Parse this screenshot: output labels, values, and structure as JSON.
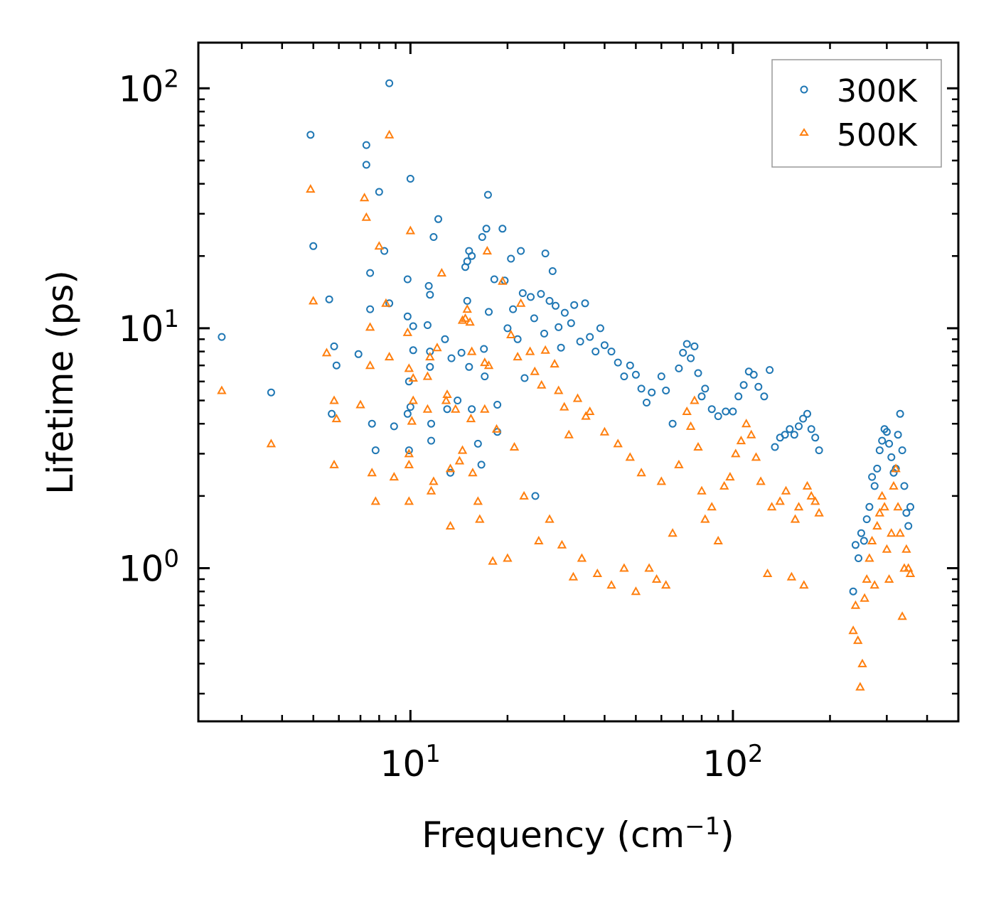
{
  "chart_data": {
    "type": "scatter",
    "title": "",
    "xlabel": "Frequency",
    "xlabel_unit_base": "cm",
    "xlabel_unit_exp": "−1",
    "ylabel": "Lifetime (ps)",
    "xscale": "log",
    "yscale": "log",
    "xlim": [
      2.2,
      500
    ],
    "ylim": [
      0.23,
      155
    ],
    "x_ticks": [
      {
        "value": 10,
        "base": "10",
        "exp": "1"
      },
      {
        "value": 100,
        "base": "10",
        "exp": "2"
      }
    ],
    "y_ticks": [
      {
        "value": 1,
        "base": "10",
        "exp": "0"
      },
      {
        "value": 10,
        "base": "10",
        "exp": "1"
      },
      {
        "value": 100,
        "base": "10",
        "exp": "2"
      }
    ],
    "legend_position": "top-right",
    "series": [
      {
        "name": "300K",
        "marker": "circle",
        "color": "#1f77b4",
        "points": [
          [
            2.6,
            9.2
          ],
          [
            3.7,
            5.4
          ],
          [
            4.9,
            64
          ],
          [
            5.0,
            22
          ],
          [
            5.6,
            13.2
          ],
          [
            5.7,
            4.4
          ],
          [
            5.8,
            8.4
          ],
          [
            5.9,
            7.0
          ],
          [
            6.9,
            7.8
          ],
          [
            7.3,
            58
          ],
          [
            7.3,
            48
          ],
          [
            7.5,
            17
          ],
          [
            7.5,
            12
          ],
          [
            7.6,
            4.0
          ],
          [
            7.8,
            3.1
          ],
          [
            8.0,
            37
          ],
          [
            8.3,
            21
          ],
          [
            8.6,
            12.7
          ],
          [
            8.6,
            105
          ],
          [
            8.9,
            3.9
          ],
          [
            9.8,
            16
          ],
          [
            9.8,
            11.2
          ],
          [
            9.8,
            4.4
          ],
          [
            9.9,
            3.1
          ],
          [
            9.9,
            6.0
          ],
          [
            10.0,
            42
          ],
          [
            10.0,
            4.7
          ],
          [
            10.2,
            10.2
          ],
          [
            10.2,
            8.1
          ],
          [
            11.3,
            10.3
          ],
          [
            11.4,
            15
          ],
          [
            11.5,
            13.8
          ],
          [
            11.5,
            8.0
          ],
          [
            11.5,
            6.9
          ],
          [
            11.6,
            3.4
          ],
          [
            11.6,
            4.0
          ],
          [
            11.8,
            24
          ],
          [
            12.2,
            28.5
          ],
          [
            12.8,
            9.0
          ],
          [
            13.0,
            4.6
          ],
          [
            13.3,
            2.5
          ],
          [
            13.4,
            7.5
          ],
          [
            14.0,
            5.0
          ],
          [
            14.4,
            7.9
          ],
          [
            14.8,
            18
          ],
          [
            15.0,
            19
          ],
          [
            15.2,
            21
          ],
          [
            15.5,
            20
          ],
          [
            15.0,
            13
          ],
          [
            15.2,
            6.9
          ],
          [
            15.5,
            4.6
          ],
          [
            16.2,
            3.3
          ],
          [
            16.6,
            2.7
          ],
          [
            16.7,
            24
          ],
          [
            16.9,
            8.2
          ],
          [
            17.2,
            26
          ],
          [
            17.4,
            36
          ],
          [
            17.5,
            11.7
          ],
          [
            17.0,
            6.3
          ],
          [
            18.2,
            16
          ],
          [
            18.6,
            4.8
          ],
          [
            18.6,
            3.7
          ],
          [
            19.3,
            26
          ],
          [
            19.6,
            15.8
          ],
          [
            20.0,
            10
          ],
          [
            20.5,
            19.5
          ],
          [
            20.8,
            12
          ],
          [
            21.5,
            9.0
          ],
          [
            22.0,
            21
          ],
          [
            22.3,
            14
          ],
          [
            22.6,
            6.2
          ],
          [
            23.6,
            13.5
          ],
          [
            24.2,
            11.0
          ],
          [
            24.4,
            2.0
          ],
          [
            25.4,
            13.9
          ],
          [
            26.0,
            9.5
          ],
          [
            26.2,
            20.5
          ],
          [
            27.0,
            13.0
          ],
          [
            27.6,
            17.3
          ],
          [
            28.2,
            12.4
          ],
          [
            28.8,
            10.1
          ],
          [
            29.3,
            8.3
          ],
          [
            30.1,
            11.6
          ],
          [
            31.5,
            10.5
          ],
          [
            32.2,
            12.5
          ],
          [
            33.6,
            8.8
          ],
          [
            34.8,
            12.7
          ],
          [
            36.0,
            9.2
          ],
          [
            37.5,
            8.0
          ],
          [
            38.8,
            10.0
          ],
          [
            40.0,
            8.5
          ],
          [
            42.0,
            8.0
          ],
          [
            44.0,
            7.2
          ],
          [
            46.0,
            6.3
          ],
          [
            48.0,
            7.0
          ],
          [
            50.0,
            6.4
          ],
          [
            52.0,
            5.6
          ],
          [
            54.0,
            4.9
          ],
          [
            56.0,
            5.4
          ],
          [
            60.0,
            6.3
          ],
          [
            62.0,
            5.5
          ],
          [
            65.0,
            4.0
          ],
          [
            68.0,
            6.8
          ],
          [
            70.0,
            7.9
          ],
          [
            72.0,
            8.6
          ],
          [
            74.0,
            7.5
          ],
          [
            76.0,
            8.4
          ],
          [
            78.0,
            6.5
          ],
          [
            80.0,
            5.2
          ],
          [
            82.0,
            5.6
          ],
          [
            86.0,
            4.6
          ],
          [
            90.0,
            4.3
          ],
          [
            95.0,
            4.5
          ],
          [
            100.0,
            4.5
          ],
          [
            104.0,
            5.2
          ],
          [
            108.0,
            5.8
          ],
          [
            112.0,
            6.6
          ],
          [
            116.0,
            6.4
          ],
          [
            120.0,
            5.7
          ],
          [
            125.0,
            5.2
          ],
          [
            130.0,
            6.7
          ],
          [
            135.0,
            3.2
          ],
          [
            140.0,
            3.5
          ],
          [
            145.0,
            3.6
          ],
          [
            150.0,
            3.8
          ],
          [
            155.0,
            3.6
          ],
          [
            160.0,
            3.9
          ],
          [
            165.0,
            4.2
          ],
          [
            170.0,
            4.4
          ],
          [
            175.0,
            3.8
          ],
          [
            180.0,
            3.5
          ],
          [
            185.0,
            3.1
          ],
          [
            236.0,
            0.8
          ],
          [
            240.0,
            1.25
          ],
          [
            245.0,
            1.1
          ],
          [
            250.0,
            1.4
          ],
          [
            255.0,
            1.3
          ],
          [
            260.0,
            1.6
          ],
          [
            265.0,
            1.8
          ],
          [
            270.0,
            2.4
          ],
          [
            275.0,
            2.2
          ],
          [
            280.0,
            2.6
          ],
          [
            285.0,
            3.1
          ],
          [
            290.0,
            3.4
          ],
          [
            295.0,
            3.8
          ],
          [
            300.0,
            3.7
          ],
          [
            305.0,
            3.3
          ],
          [
            310.0,
            2.9
          ],
          [
            315.0,
            2.5
          ],
          [
            320.0,
            2.6
          ],
          [
            325.0,
            3.6
          ],
          [
            330.0,
            4.4
          ],
          [
            335.0,
            3.1
          ],
          [
            340.0,
            2.2
          ],
          [
            345.0,
            1.7
          ],
          [
            350.0,
            1.5
          ],
          [
            355.0,
            1.8
          ]
        ]
      },
      {
        "name": "500K",
        "marker": "triangle",
        "color": "#ff7f0e",
        "points": [
          [
            2.6,
            5.5
          ],
          [
            3.7,
            3.3
          ],
          [
            4.9,
            38
          ],
          [
            5.0,
            13
          ],
          [
            5.5,
            7.9
          ],
          [
            5.8,
            5.0
          ],
          [
            5.8,
            2.7
          ],
          [
            5.9,
            4.2
          ],
          [
            7.0,
            4.8
          ],
          [
            7.2,
            35
          ],
          [
            7.3,
            29
          ],
          [
            7.5,
            10.1
          ],
          [
            7.5,
            7.0
          ],
          [
            7.6,
            2.5
          ],
          [
            7.8,
            1.9
          ],
          [
            8.0,
            22
          ],
          [
            8.4,
            12.7
          ],
          [
            8.6,
            7.6
          ],
          [
            8.6,
            64
          ],
          [
            8.9,
            2.4
          ],
          [
            9.8,
            9.6
          ],
          [
            9.9,
            6.8
          ],
          [
            9.9,
            3.0
          ],
          [
            9.9,
            1.9
          ],
          [
            9.9,
            2.7
          ],
          [
            10.0,
            25.5
          ],
          [
            10.1,
            4.1
          ],
          [
            10.2,
            6.2
          ],
          [
            10.2,
            5.0
          ],
          [
            11.3,
            6.3
          ],
          [
            11.3,
            4.6
          ],
          [
            11.5,
            7.6
          ],
          [
            11.6,
            2.1
          ],
          [
            11.8,
            2.3
          ],
          [
            12.1,
            8.3
          ],
          [
            12.5,
            17
          ],
          [
            12.9,
            5.0
          ],
          [
            13.0,
            5.3
          ],
          [
            13.3,
            1.5
          ],
          [
            13.3,
            2.6
          ],
          [
            13.8,
            4.6
          ],
          [
            14.2,
            2.8
          ],
          [
            14.5,
            3.1
          ],
          [
            14.5,
            10.8
          ],
          [
            14.8,
            11.0
          ],
          [
            15.0,
            12.0
          ],
          [
            15.3,
            10.6
          ],
          [
            15.5,
            8.0
          ],
          [
            15.4,
            4.2
          ],
          [
            15.6,
            2.5
          ],
          [
            16.2,
            1.9
          ],
          [
            16.4,
            1.6
          ],
          [
            17.0,
            7.2
          ],
          [
            17.3,
            21
          ],
          [
            17.5,
            7.0
          ],
          [
            17.0,
            4.6
          ],
          [
            18.0,
            1.07
          ],
          [
            18.5,
            3.8
          ],
          [
            19.3,
            15.7
          ],
          [
            20.0,
            1.1
          ],
          [
            20.5,
            9.4
          ],
          [
            21.0,
            3.2
          ],
          [
            21.5,
            7.6
          ],
          [
            22.0,
            12.7
          ],
          [
            22.5,
            2.0
          ],
          [
            23.5,
            8.0
          ],
          [
            24.3,
            6.6
          ],
          [
            25.0,
            1.3
          ],
          [
            25.5,
            5.8
          ],
          [
            26.2,
            8.1
          ],
          [
            27.0,
            1.6
          ],
          [
            28.0,
            7.1
          ],
          [
            28.8,
            5.5
          ],
          [
            29.5,
            1.25
          ],
          [
            30.0,
            4.7
          ],
          [
            31.0,
            3.6
          ],
          [
            32.0,
            0.92
          ],
          [
            33.0,
            5.1
          ],
          [
            34.0,
            1.1
          ],
          [
            35.0,
            4.3
          ],
          [
            36.0,
            4.5
          ],
          [
            38.0,
            0.95
          ],
          [
            40.0,
            3.7
          ],
          [
            42.0,
            0.85
          ],
          [
            44.0,
            3.3
          ],
          [
            46.0,
            1.0
          ],
          [
            48.0,
            2.9
          ],
          [
            50.0,
            0.8
          ],
          [
            52.0,
            2.5
          ],
          [
            55.0,
            1.0
          ],
          [
            58.0,
            0.9
          ],
          [
            60.0,
            2.3
          ],
          [
            62.0,
            0.85
          ],
          [
            65.0,
            1.4
          ],
          [
            68.0,
            2.7
          ],
          [
            72.0,
            4.5
          ],
          [
            74.0,
            3.9
          ],
          [
            76.0,
            5.0
          ],
          [
            78.0,
            3.2
          ],
          [
            80.0,
            2.1
          ],
          [
            82.0,
            1.6
          ],
          [
            86.0,
            1.8
          ],
          [
            90.0,
            1.3
          ],
          [
            94.0,
            2.2
          ],
          [
            98.0,
            2.4
          ],
          [
            102.0,
            3.0
          ],
          [
            106.0,
            3.4
          ],
          [
            110.0,
            4.0
          ],
          [
            114.0,
            3.6
          ],
          [
            118.0,
            2.9
          ],
          [
            122.0,
            2.3
          ],
          [
            128.0,
            0.95
          ],
          [
            132.0,
            1.8
          ],
          [
            140.0,
            1.9
          ],
          [
            146.0,
            2.1
          ],
          [
            152.0,
            0.92
          ],
          [
            156.0,
            1.6
          ],
          [
            160.0,
            1.8
          ],
          [
            166.0,
            0.85
          ],
          [
            170.0,
            2.2
          ],
          [
            175.0,
            2.0
          ],
          [
            180.0,
            1.9
          ],
          [
            185.0,
            1.7
          ],
          [
            236.0,
            0.55
          ],
          [
            240.0,
            0.7
          ],
          [
            244.0,
            0.5
          ],
          [
            248.0,
            0.32
          ],
          [
            252.0,
            0.4
          ],
          [
            256.0,
            0.75
          ],
          [
            260.0,
            0.9
          ],
          [
            265.0,
            1.1
          ],
          [
            270.0,
            1.3
          ],
          [
            275.0,
            0.85
          ],
          [
            280.0,
            1.5
          ],
          [
            285.0,
            1.7
          ],
          [
            290.0,
            2.0
          ],
          [
            295.0,
            1.8
          ],
          [
            300.0,
            1.2
          ],
          [
            305.0,
            0.9
          ],
          [
            310.0,
            1.4
          ],
          [
            315.0,
            2.2
          ],
          [
            320.0,
            2.6
          ],
          [
            325.0,
            1.8
          ],
          [
            330.0,
            1.4
          ],
          [
            335.0,
            0.63
          ],
          [
            340.0,
            1.0
          ],
          [
            345.0,
            1.2
          ],
          [
            350.0,
            1.0
          ],
          [
            355.0,
            0.95
          ]
        ]
      }
    ]
  }
}
